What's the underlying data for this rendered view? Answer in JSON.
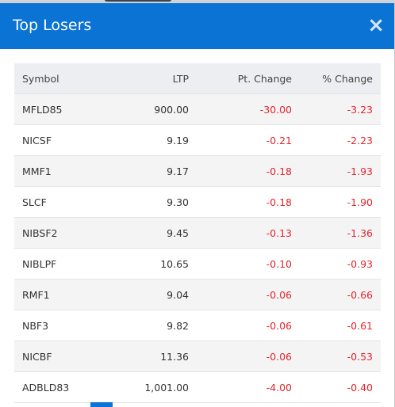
{
  "header": {
    "title": "Top Losers",
    "close": "×"
  },
  "table": {
    "columns": [
      "Symbol",
      "LTP",
      "Pt. Change",
      "% Change"
    ],
    "rows": [
      [
        "MFLD85",
        "900.00",
        "-30.00",
        "-3.23"
      ],
      [
        "NICSF",
        "9.19",
        "-0.21",
        "-2.23"
      ],
      [
        "MMF1",
        "9.17",
        "-0.18",
        "-1.93"
      ],
      [
        "SLCF",
        "9.30",
        "-0.18",
        "-1.90"
      ],
      [
        "NIBSF2",
        "9.45",
        "-0.13",
        "-1.36"
      ],
      [
        "NIBLPF",
        "10.65",
        "-0.10",
        "-0.93"
      ],
      [
        "RMF1",
        "9.04",
        "-0.06",
        "-0.66"
      ],
      [
        "NBF3",
        "9.82",
        "-0.06",
        "-0.61"
      ],
      [
        "NICBF",
        "11.36",
        "-0.06",
        "-0.53"
      ],
      [
        "ADBLD83",
        "1,001.00",
        "-4.00",
        "-0.40"
      ]
    ]
  }
}
